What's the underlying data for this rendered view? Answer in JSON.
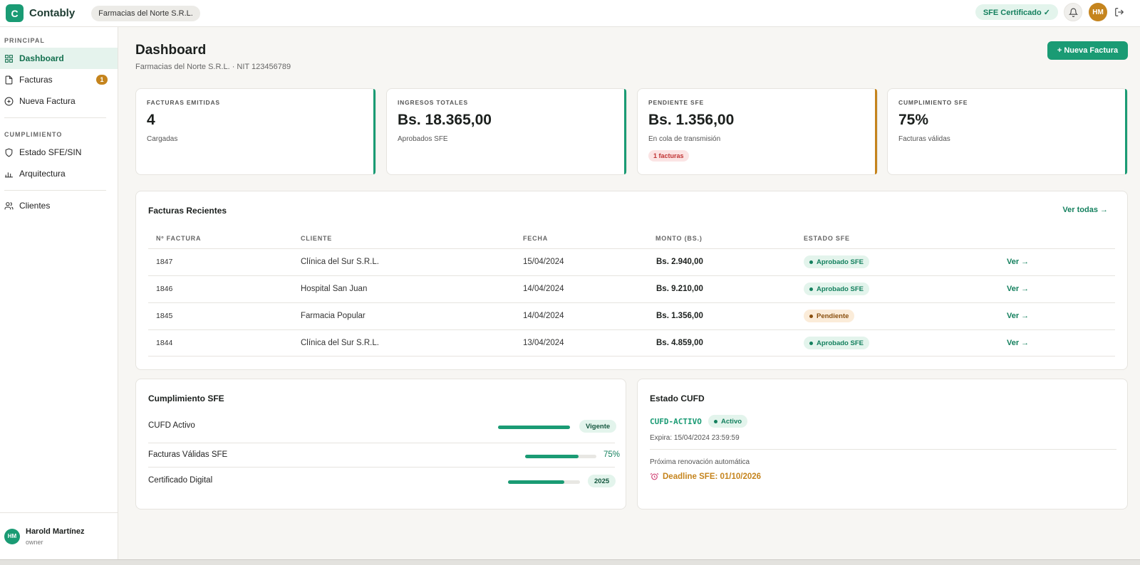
{
  "app": {
    "logo_letter": "C",
    "name": "Contably",
    "company_chip": "Farmacias del Norte S.R.L."
  },
  "topbar": {
    "sfe_badge": "SFE Certificado ✓",
    "avatar_initials": "HM"
  },
  "sidebar": {
    "sections": {
      "principal": "PRINCIPAL",
      "cumplimiento": "CUMPLIMIENTO"
    },
    "items": [
      {
        "label": "Dashboard"
      },
      {
        "label": "Facturas",
        "badge": "1"
      },
      {
        "label": "Nueva Factura"
      },
      {
        "label": "Estado SFE/SIN"
      },
      {
        "label": "Arquitectura"
      },
      {
        "label": "Clientes"
      }
    ],
    "user": {
      "initials": "HM",
      "name": "Harold Martínez",
      "role": "owner"
    }
  },
  "page": {
    "title": "Dashboard",
    "subtitle": "Farmacias del Norte S.R.L. · NIT 123456789",
    "new_invoice_button": "+ Nueva Factura"
  },
  "kpis": [
    {
      "label": "FACTURAS EMITIDAS",
      "value": "4",
      "sub": "Cargadas",
      "accent": "#1a9b74"
    },
    {
      "label": "INGRESOS TOTALES",
      "value": "Bs. 18.365,00",
      "sub": "Aprobados SFE",
      "accent": "#1a9b74"
    },
    {
      "label": "PENDIENTE SFE",
      "value": "Bs. 1.356,00",
      "sub": "En cola de transmisión",
      "tag": "1 facturas",
      "accent": "#c5841d"
    },
    {
      "label": "CUMPLIMIENTO SFE",
      "value": "75%",
      "sub": "Facturas válidas",
      "accent": "#1a9b74"
    }
  ],
  "recent": {
    "title": "Facturas Recientes",
    "see_all": "Ver todas →",
    "headers": [
      "Nº FACTURA",
      "CLIENTE",
      "FECHA",
      "MONTO (BS.)",
      "ESTADO SFE"
    ],
    "rows": [
      {
        "number": "1847",
        "client": "Clínica del Sur S.R.L.",
        "date": "15/04/2024",
        "amount": "Bs. 2.940,00",
        "status": "Aprobado SFE",
        "link": "Ver →"
      },
      {
        "number": "1846",
        "client": "Hospital San Juan",
        "date": "14/04/2024",
        "amount": "Bs. 9.210,00",
        "status": "Aprobado SFE",
        "link": "Ver →"
      },
      {
        "number": "1845",
        "client": "Farmacia Popular",
        "date": "14/04/2024",
        "amount": "Bs. 1.356,00",
        "status": "Pendiente",
        "link": "Ver →"
      },
      {
        "number": "1844",
        "client": "Clínica del Sur S.R.L.",
        "date": "13/04/2024",
        "amount": "Bs. 4.859,00",
        "status": "Aprobado SFE",
        "link": "Ver →"
      }
    ]
  },
  "compliance": {
    "title": "Cumplimiento SFE",
    "rows": [
      {
        "label": "CUFD Activo",
        "progress": 1.0,
        "tag": "Vigente"
      },
      {
        "label": "Facturas Válidas SFE",
        "progress": 0.75,
        "value": "75%"
      },
      {
        "label": "Certificado Digital",
        "progress": 0.78,
        "tag": "2025"
      }
    ]
  },
  "cufd": {
    "title": "Estado CUFD",
    "code": "CUFD-ACTIVO",
    "status": "Activo",
    "expires": "Expira: 15/04/2024 23:59:59",
    "renewal": "Próxima renovación automática",
    "deadline": "Deadline SFE: 01/10/2026"
  },
  "colors": {
    "brand": "#1a9b74",
    "warning": "#c5841d",
    "danger": "#c03434"
  }
}
